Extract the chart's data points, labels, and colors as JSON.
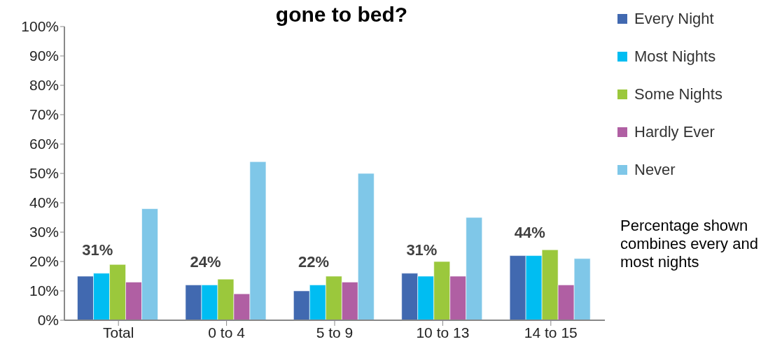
{
  "chart_data": {
    "type": "bar",
    "title": "gone to bed?",
    "categories": [
      "Total",
      "0 to 4",
      "5 to 9",
      "10 to 13",
      "14 to 15"
    ],
    "series": [
      {
        "name": "Every Night",
        "color": "#4169b0",
        "values": [
          15,
          12,
          10,
          16,
          22
        ]
      },
      {
        "name": "Most Nights",
        "color": "#00bdf2",
        "values": [
          16,
          12,
          12,
          15,
          22
        ]
      },
      {
        "name": "Some Nights",
        "color": "#9bc83c",
        "values": [
          19,
          14,
          15,
          20,
          24
        ]
      },
      {
        "name": "Hardly Ever",
        "color": "#b05fa3",
        "values": [
          13,
          9,
          13,
          15,
          12
        ]
      },
      {
        "name": "Never",
        "color": "#7fc7e8",
        "values": [
          38,
          54,
          50,
          35,
          21
        ]
      }
    ],
    "ylim": [
      0,
      100
    ],
    "yticks": [
      {
        "value": 0,
        "label": "0%"
      },
      {
        "value": 10,
        "label": "10%"
      },
      {
        "value": 20,
        "label": "20%"
      },
      {
        "value": 30,
        "label": "30%"
      },
      {
        "value": 40,
        "label": "40%"
      },
      {
        "value": 50,
        "label": "50%"
      },
      {
        "value": 60,
        "label": "60%"
      },
      {
        "value": 70,
        "label": "70%"
      },
      {
        "value": 80,
        "label": "80%"
      },
      {
        "value": 90,
        "label": "90%"
      },
      {
        "value": 100,
        "label": "100%"
      }
    ],
    "grid": false,
    "legend": "right",
    "annotations": [
      "31%",
      "24%",
      "22%",
      "31%",
      "44%",
      "Percentage shown combines every and most nights"
    ]
  }
}
